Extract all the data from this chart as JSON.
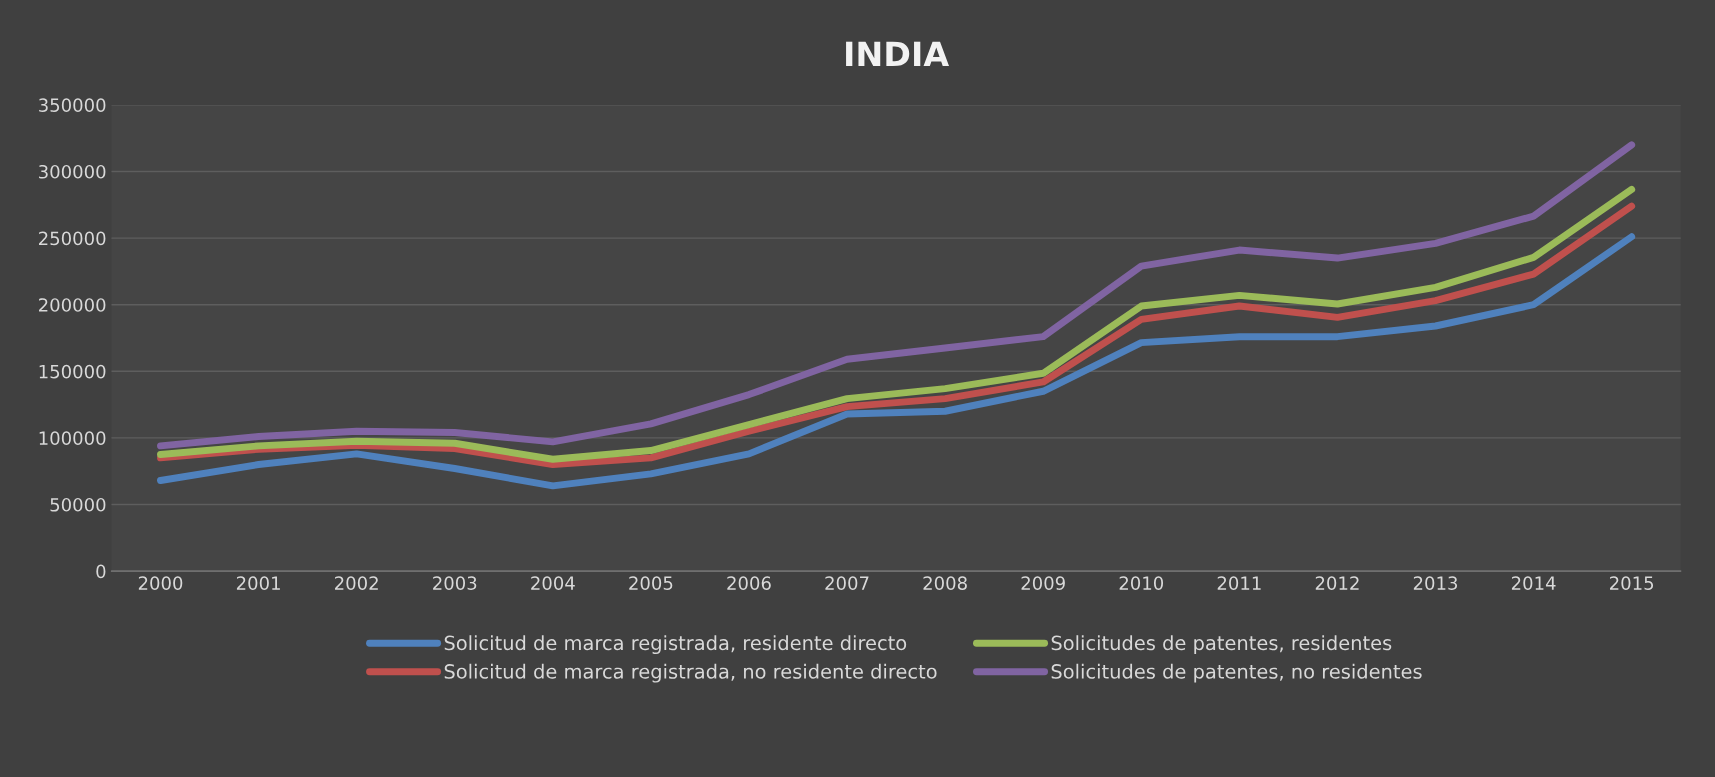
{
  "chart_data": {
    "type": "line",
    "title": "INDIA",
    "categories": [
      "2000",
      "2001",
      "2002",
      "2003",
      "2004",
      "2005",
      "2006",
      "2007",
      "2008",
      "2009",
      "2010",
      "2011",
      "2012",
      "2013",
      "2014",
      "2015"
    ],
    "series": [
      {
        "name": "Solicitud de marca registrada, residente directo",
        "color": "#4f81bd",
        "values": [
          68000,
          80000,
          88000,
          77000,
          64000,
          73000,
          88000,
          118000,
          120000,
          135000,
          171500,
          176000,
          176000,
          184000,
          200000,
          251000
        ]
      },
      {
        "name": "Solicitud de marca registrada, no residente directo",
        "color": "#c0504d",
        "values": [
          85000,
          91500,
          94500,
          92000,
          80000,
          85000,
          105000,
          123500,
          129500,
          142000,
          189000,
          199000,
          190500,
          203000,
          223000,
          274000
        ]
      },
      {
        "name": "Solicitudes de patentes, residentes",
        "color": "#9bbb59",
        "values": [
          87500,
          94000,
          97500,
          96000,
          84000,
          90500,
          110000,
          129500,
          137000,
          148500,
          199000,
          207000,
          200500,
          213000,
          235500,
          286500
        ]
      },
      {
        "name": "Solicitudes de patentes, no residentes",
        "color": "#8064a2",
        "values": [
          94000,
          101000,
          105000,
          104000,
          97000,
          110500,
          132500,
          159000,
          167500,
          176000,
          229000,
          241000,
          235000,
          246000,
          266500,
          320000
        ]
      }
    ],
    "ylim": [
      0,
      350000
    ],
    "yticks": [
      0,
      50000,
      100000,
      150000,
      200000,
      250000,
      300000,
      350000
    ],
    "grid": "y",
    "legend": "bottom",
    "marker": "none",
    "line_style": "solid"
  }
}
